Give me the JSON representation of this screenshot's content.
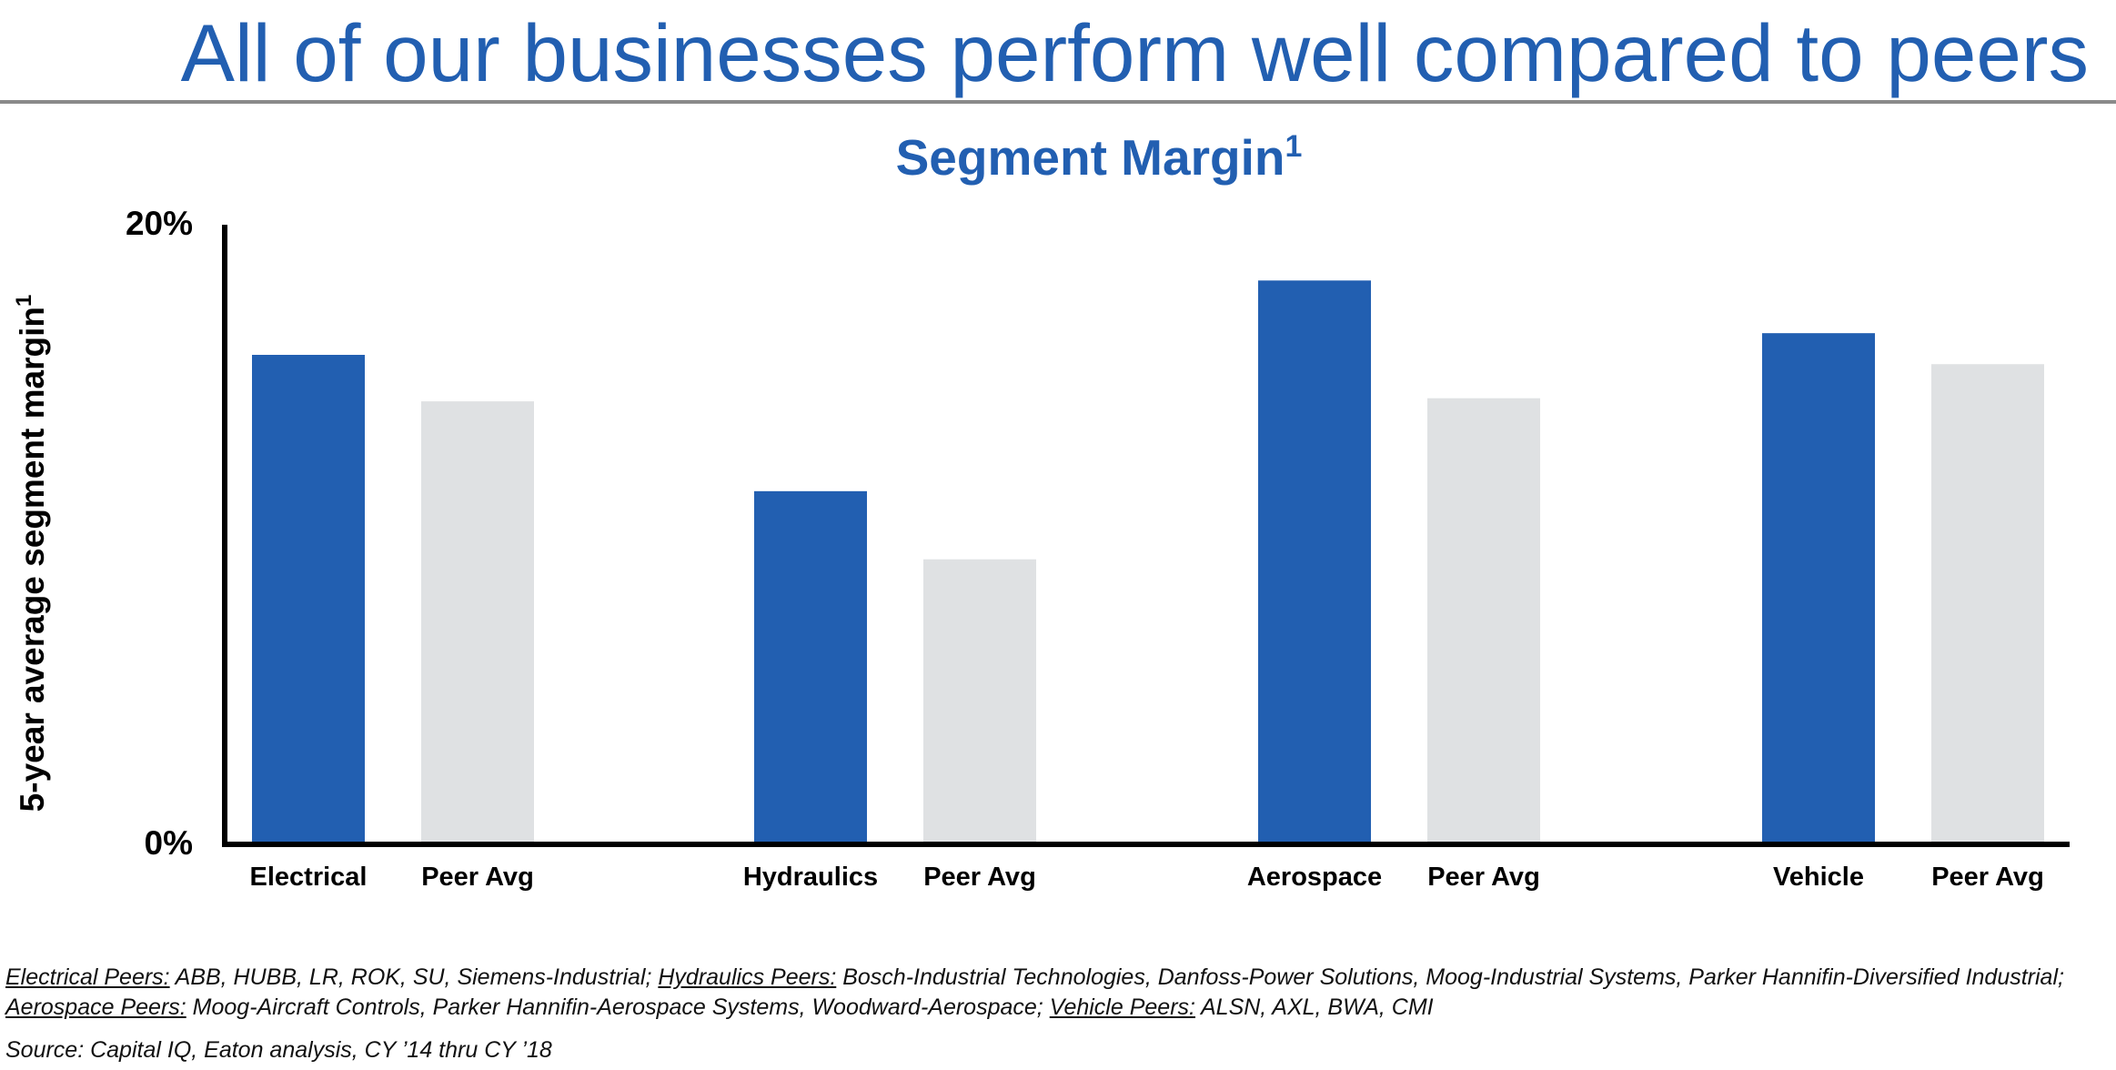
{
  "headline": "All of our businesses perform well compared to peers",
  "colors": {
    "eaton": "#225fb1",
    "peer": "#dfe1e3",
    "title": "#225fb1",
    "axis": "#000000"
  },
  "chart_data": {
    "type": "bar",
    "title": "Segment Margin",
    "title_superscript": "1",
    "ylabel": "5-year average segment margin",
    "ylabel_superscript": "1",
    "xlabel": "",
    "ylim": [
      0,
      20
    ],
    "yticks": [
      "20%",
      "0%"
    ],
    "grid": false,
    "groups": [
      {
        "name": "Electrical",
        "bars": [
          {
            "label": "Electrical",
            "value": 15.8,
            "kind": "eaton"
          },
          {
            "label": "Peer Avg",
            "value": 14.3,
            "kind": "peer"
          }
        ]
      },
      {
        "name": "Hydraulics",
        "bars": [
          {
            "label": "Hydraulics",
            "value": 11.4,
            "kind": "eaton"
          },
          {
            "label": "Peer Avg",
            "value": 9.2,
            "kind": "peer"
          }
        ]
      },
      {
        "name": "Aerospace",
        "bars": [
          {
            "label": "Aerospace",
            "value": 18.2,
            "kind": "eaton"
          },
          {
            "label": "Peer Avg",
            "value": 14.4,
            "kind": "peer"
          }
        ]
      },
      {
        "name": "Vehicle",
        "bars": [
          {
            "label": "Vehicle",
            "value": 16.5,
            "kind": "eaton"
          },
          {
            "label": "Peer Avg",
            "value": 15.5,
            "kind": "peer"
          }
        ]
      }
    ]
  },
  "footnote": {
    "electrical_label": "Electrical Peers:",
    "electrical_text": " ABB, HUBB, LR, ROK, SU, Siemens-Industrial; ",
    "hydraulics_label": "Hydraulics Peers:",
    "hydraulics_text": " Bosch-Industrial Technologies, Danfoss-Power Solutions, Moog-Industrial Systems, Parker Hannifin-Diversified Industrial; ",
    "aerospace_label": "Aerospace Peers:",
    "aerospace_text": " Moog-Aircraft Controls, Parker Hannifin-Aerospace Systems, Woodward-Aerospace; ",
    "vehicle_label": "Vehicle Peers:",
    "vehicle_text": " ALSN, AXL, BWA, CMI"
  },
  "source": "Source: Capital IQ, Eaton analysis, CY ’14 thru CY ’18"
}
